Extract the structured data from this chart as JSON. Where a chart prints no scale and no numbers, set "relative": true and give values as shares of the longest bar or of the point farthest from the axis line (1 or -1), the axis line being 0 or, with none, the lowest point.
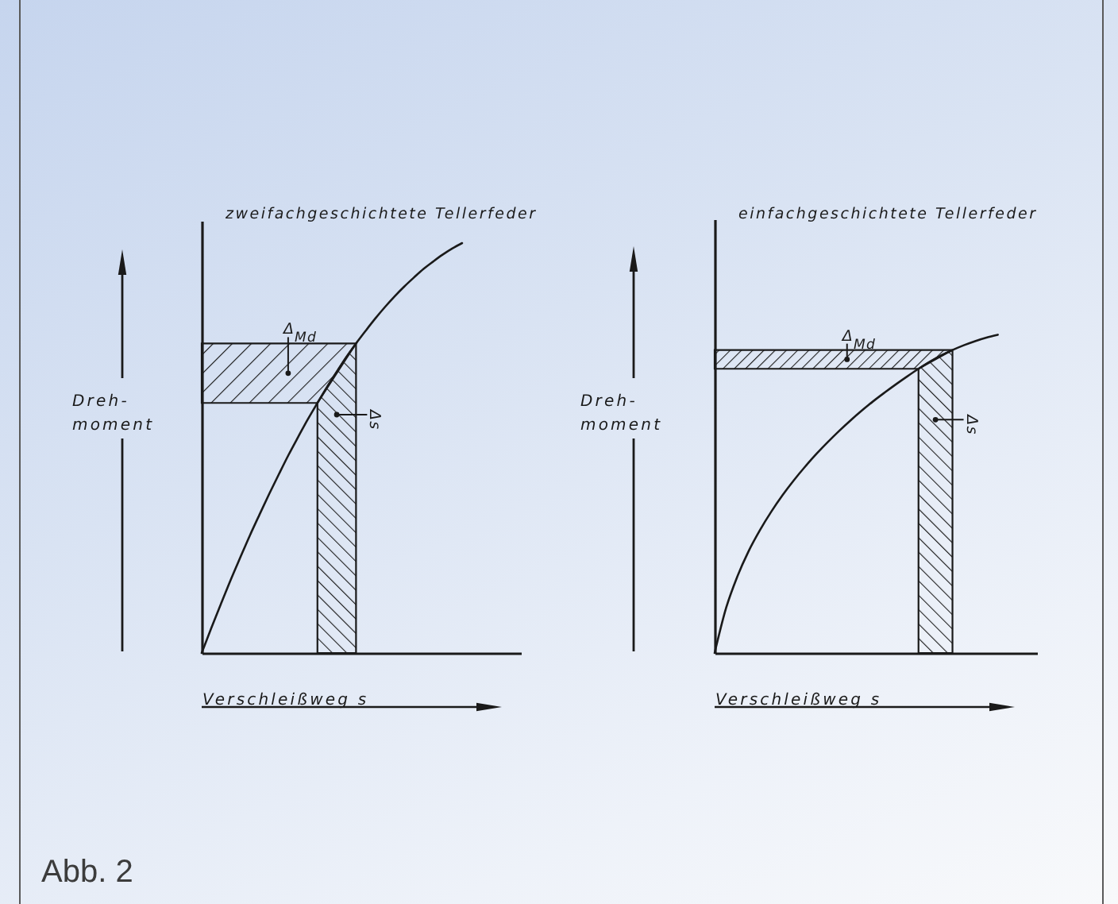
{
  "chart_data": [
    {
      "type": "line",
      "title": "zweifachgeschichtete Tellerfeder",
      "xlabel": "Verschleißweg s",
      "ylabel": "Dreh-\nmoment",
      "relative": true,
      "categories": [
        null,
        null,
        null,
        null,
        null,
        null,
        null,
        null,
        null,
        null,
        null,
        null,
        null,
        null,
        null,
        null,
        null,
        null,
        null,
        null,
        null,
        null,
        null,
        null,
        null,
        null,
        null,
        null
      ],
      "series": [
        {
          "color": "#1a1a1a",
          "values": [
            0,
            0.061,
            0.12,
            0.178,
            0.233,
            0.287,
            0.338,
            0.388,
            0.436,
            0.483,
            0.527,
            0.57,
            0.61,
            0.649,
            0.686,
            0.722,
            0.755,
            0.786,
            0.816,
            0.844,
            0.87,
            0.894,
            0.916,
            0.937,
            0.955,
            0.972,
            0.987,
            1
          ]
        },
        {
          "type": "area",
          "name": "Δs",
          "color": "#1a1a1a",
          "values": [
            null,
            null,
            null,
            null,
            null,
            null,
            null,
            null,
            null,
            null,
            null,
            null,
            0.61,
            0.649,
            0.686,
            0.722,
            0.755,
            null,
            null,
            null,
            null,
            null,
            null,
            null,
            null,
            null,
            null,
            null
          ]
        }
      ],
      "bands": [
        {
          "axis": "y",
          "from": 0.61,
          "to": 0.755,
          "label": "Δ$_{Md}$",
          "color": "#1a1a1a"
        }
      ],
      "annotations": [
        "Abb. 2"
      ]
    },
    {
      "type": "line",
      "title": "einfachgeschichtete Tellerfeder",
      "xlabel": "Verschleißweg s",
      "ylabel": "Dreh-\nmoment",
      "relative": true,
      "categories": [
        null,
        null,
        null,
        null,
        null,
        null,
        null,
        null,
        null,
        null,
        null,
        null,
        null,
        null,
        null,
        null,
        null,
        null,
        null,
        null,
        null,
        null,
        null,
        null,
        null,
        null
      ],
      "series": [
        {
          "color": "#1a1a1a",
          "values": [
            0,
            0.14,
            0.24,
            0.32,
            0.386,
            0.444,
            0.496,
            0.543,
            0.586,
            0.626,
            0.663,
            0.698,
            0.731,
            0.762,
            0.791,
            0.818,
            0.844,
            0.869,
            0.893,
            0.915,
            0.935,
            0.952,
            0.967,
            0.98,
            0.991,
            1
          ]
        },
        {
          "type": "area",
          "name": "Δs",
          "color": "#1a1a1a",
          "values": [
            null,
            null,
            null,
            null,
            null,
            null,
            null,
            null,
            null,
            null,
            null,
            null,
            null,
            null,
            null,
            null,
            null,
            null,
            0.893,
            0.915,
            0.935,
            0.952,
            null,
            null,
            null,
            null
          ]
        }
      ],
      "bands": [
        {
          "axis": "y",
          "from": 0.893,
          "to": 0.952,
          "label": "Δ$_{Md}$",
          "color": "#1a1a1a"
        }
      ]
    }
  ]
}
